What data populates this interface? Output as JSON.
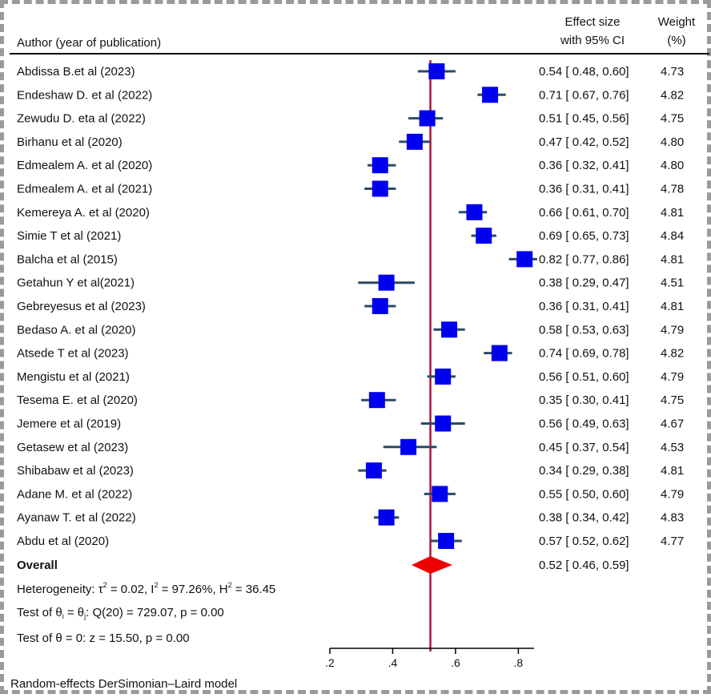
{
  "chart_data": {
    "type": "forest",
    "header": {
      "author_col": "Author (year of publication)",
      "es_line1": "Effect size",
      "es_line2": "with 95% CI",
      "weight_line1": "Weight",
      "weight_line2": "(%)"
    },
    "studies": [
      {
        "label": "Abdissa B.et al (2023)",
        "es": 0.54,
        "lo": 0.48,
        "hi": 0.6,
        "ci_text": "0.54 [ 0.48,  0.60]",
        "weight": "4.73"
      },
      {
        "label": "Endeshaw D. et al (2022)",
        "es": 0.71,
        "lo": 0.67,
        "hi": 0.76,
        "ci_text": "0.71 [ 0.67,  0.76]",
        "weight": "4.82"
      },
      {
        "label": "Zewudu D. eta al (2022)",
        "es": 0.51,
        "lo": 0.45,
        "hi": 0.56,
        "ci_text": "0.51 [ 0.45,  0.56]",
        "weight": "4.75"
      },
      {
        "label": "Birhanu et al (2020)",
        "es": 0.47,
        "lo": 0.42,
        "hi": 0.52,
        "ci_text": "0.47 [ 0.42,  0.52]",
        "weight": "4.80"
      },
      {
        "label": "Edmealem A. et al (2020)",
        "es": 0.36,
        "lo": 0.32,
        "hi": 0.41,
        "ci_text": "0.36 [ 0.32,  0.41]",
        "weight": "4.80"
      },
      {
        "label": "Edmealem A. et al (2021)",
        "es": 0.36,
        "lo": 0.31,
        "hi": 0.41,
        "ci_text": "0.36 [ 0.31,  0.41]",
        "weight": "4.78"
      },
      {
        "label": "Kemereya A. et al (2020)",
        "es": 0.66,
        "lo": 0.61,
        "hi": 0.7,
        "ci_text": "0.66 [ 0.61,  0.70]",
        "weight": "4.81"
      },
      {
        "label": "Simie T et al (2021)",
        "es": 0.69,
        "lo": 0.65,
        "hi": 0.73,
        "ci_text": "0.69 [ 0.65,  0.73]",
        "weight": "4.84"
      },
      {
        "label": "Balcha et al (2015)",
        "es": 0.82,
        "lo": 0.77,
        "hi": 0.86,
        "ci_text": "0.82 [ 0.77,  0.86]",
        "weight": "4.81"
      },
      {
        "label": "Getahun Y et al(2021)",
        "es": 0.38,
        "lo": 0.29,
        "hi": 0.47,
        "ci_text": "0.38 [ 0.29,  0.47]",
        "weight": "4.51"
      },
      {
        "label": "Gebreyesus et al (2023)",
        "es": 0.36,
        "lo": 0.31,
        "hi": 0.41,
        "ci_text": "0.36 [ 0.31,  0.41]",
        "weight": "4.81"
      },
      {
        "label": "Bedaso A. et al (2020)",
        "es": 0.58,
        "lo": 0.53,
        "hi": 0.63,
        "ci_text": "0.58 [ 0.53,  0.63]",
        "weight": "4.79"
      },
      {
        "label": "Atsede T et al (2023)",
        "es": 0.74,
        "lo": 0.69,
        "hi": 0.78,
        "ci_text": "0.74 [ 0.69,  0.78]",
        "weight": "4.82"
      },
      {
        "label": "Mengistu et al (2021)",
        "es": 0.56,
        "lo": 0.51,
        "hi": 0.6,
        "ci_text": "0.56 [ 0.51,  0.60]",
        "weight": "4.79"
      },
      {
        "label": "Tesema E. et al (2020)",
        "es": 0.35,
        "lo": 0.3,
        "hi": 0.41,
        "ci_text": "0.35 [ 0.30,  0.41]",
        "weight": "4.75"
      },
      {
        "label": "Jemere et al (2019)",
        "es": 0.56,
        "lo": 0.49,
        "hi": 0.63,
        "ci_text": "0.56 [ 0.49,  0.63]",
        "weight": "4.67"
      },
      {
        "label": "Getasew et al (2023)",
        "es": 0.45,
        "lo": 0.37,
        "hi": 0.54,
        "ci_text": "0.45 [ 0.37,  0.54]",
        "weight": "4.53"
      },
      {
        "label": "Shibabaw et al (2023)",
        "es": 0.34,
        "lo": 0.29,
        "hi": 0.38,
        "ci_text": "0.34 [ 0.29,  0.38]",
        "weight": "4.81"
      },
      {
        "label": "Adane M. et al (2022)",
        "es": 0.55,
        "lo": 0.5,
        "hi": 0.6,
        "ci_text": "0.55 [ 0.50,  0.60]",
        "weight": "4.79"
      },
      {
        "label": "Ayanaw T. et al (2022)",
        "es": 0.38,
        "lo": 0.34,
        "hi": 0.42,
        "ci_text": "0.38 [ 0.34,  0.42]",
        "weight": "4.83"
      },
      {
        "label": "Abdu et al (2020)",
        "es": 0.57,
        "lo": 0.52,
        "hi": 0.62,
        "ci_text": "0.57 [ 0.52,  0.62]",
        "weight": "4.77"
      }
    ],
    "overall": {
      "label": "Overall",
      "es": 0.52,
      "lo": 0.46,
      "hi": 0.59,
      "ci_text": "0.52 [ 0.46,  0.59]"
    },
    "heterogeneity": {
      "prefix": "Heterogeneity: τ",
      "tau_sup": "2",
      "tau_val": " = 0.02, I",
      "i_sup": "2",
      "i_val": " = 97.26%, H",
      "h_sup": "2",
      "h_val": " = 36.45"
    },
    "test_theta_eq": {
      "prefix": "Test of θ",
      "sub_i": "i",
      "mid": " = θ",
      "sub_j": "j",
      "suffix": ": Q(20) = 729.07, p = 0.00"
    },
    "test_theta_zero": "Test of θ = 0: z = 15.50, p = 0.00",
    "x_axis": {
      "min": 0.2,
      "max": 0.85,
      "ticks": [
        0.2,
        0.4,
        0.6,
        0.8
      ],
      "tick_labels": [
        ".2",
        ".4",
        ".6",
        ".8"
      ]
    },
    "reference_line": 0.52,
    "footnote": "Random-effects DerSimonian–Laird model",
    "colors": {
      "marker": "#0000ee",
      "ci": "#2b4a66",
      "overall": "#ee0000",
      "ref": "#b0143c"
    }
  }
}
